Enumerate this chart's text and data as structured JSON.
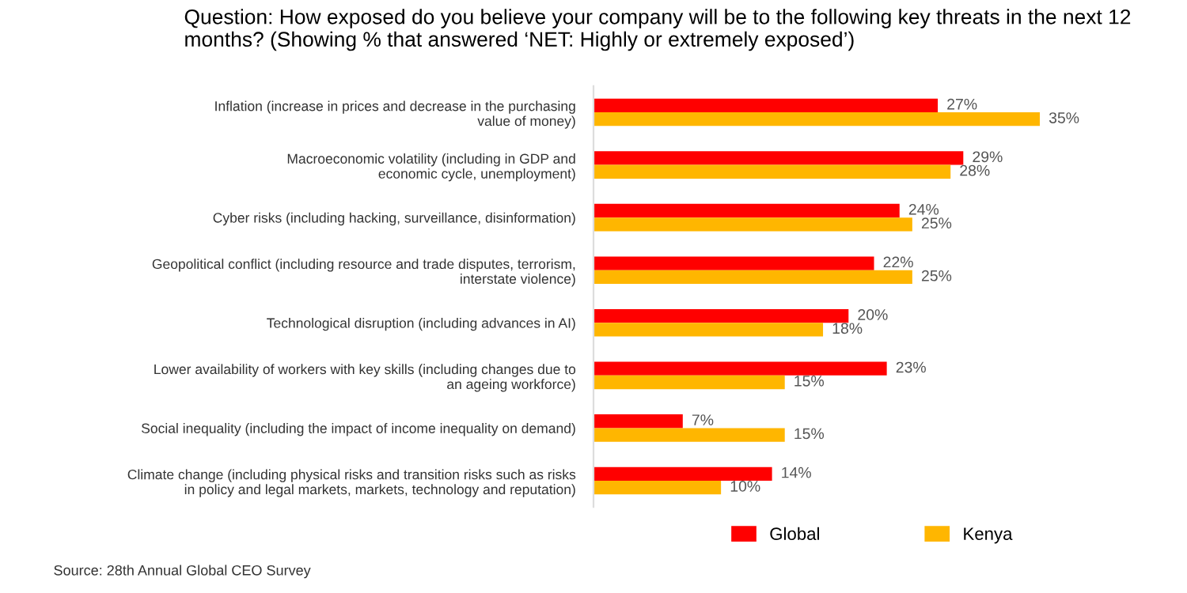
{
  "chart_data": {
    "type": "bar",
    "orientation": "horizontal",
    "title": "Question: How exposed do you believe your company will be to the following key threats in the next 12 months? (Showing % that answered ‘NET: Highly or extremely exposed’)",
    "categories": [
      "Inflation (increase in prices and decrease in the purchasing\nvalue of money)",
      "Macroeconomic volatility (including in GDP and\neconomic cycle, unemployment)",
      "Cyber risks (including hacking, surveillance, disinformation)",
      "Geopolitical conflict (including resource and trade disputes, terrorism,\ninterstate violence)",
      "Technological disruption (including advances in AI)",
      "Lower availability of workers with key skills (including changes due to\nan ageing workforce)",
      "Social inequality (including the impact of income inequality on demand)",
      "Climate change (including physical risks and transition risks such as risks\nin policy and legal markets, markets, technology and reputation)"
    ],
    "series": [
      {
        "name": "Global",
        "color": "#ff0000",
        "values": [
          27,
          29,
          24,
          22,
          20,
          23,
          7,
          14
        ],
        "value_labels": [
          "27%",
          "29%",
          "24%",
          "22%",
          "20%",
          "23%",
          "7%",
          "14%"
        ]
      },
      {
        "name": "Kenya",
        "color": "#ffb600",
        "values": [
          35,
          28,
          25,
          25,
          18,
          15,
          15,
          10
        ],
        "value_labels": [
          "35%",
          "28%",
          "25%",
          "25%",
          "18%",
          "15%",
          "15%",
          "10%"
        ]
      }
    ],
    "legend": "bottom",
    "grid": false,
    "annotations": [
      "Source: 28th Annual Global CEO Survey"
    ]
  }
}
